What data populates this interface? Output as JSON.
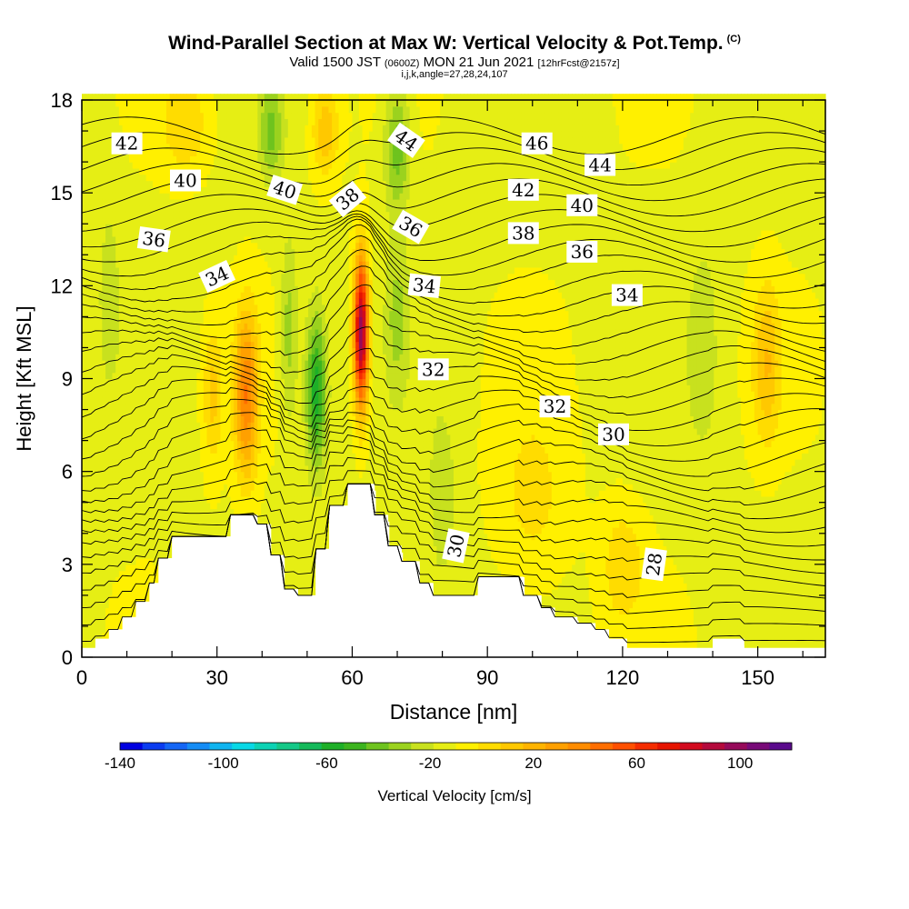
{
  "title": {
    "main": "Wind-Parallel Section at Max W: Vertical Velocity & Pot.Temp.",
    "copyright": "(C)",
    "valid_prefix": "Valid 1500 JST",
    "valid_utc": "(0600Z)",
    "valid_date": "MON 21 Jun 2021",
    "forecast": "[12hrFcst@2157z]",
    "subtitle": "i,j,k,angle=27,28,24,107"
  },
  "colors": {
    "background": "#ffffff",
    "scale": [
      "#0000e0",
      "#0b3cf0",
      "#1466f5",
      "#148cf5",
      "#0fb4f0",
      "#08d8e6",
      "#0cd2b4",
      "#14c887",
      "#14b95a",
      "#1eaf28",
      "#3cb41e",
      "#6ec31e",
      "#9bd21e",
      "#c8e11e",
      "#e6ee14",
      "#fff000",
      "#ffdc00",
      "#ffc800",
      "#ffb400",
      "#ffa000",
      "#ff8c00",
      "#ff6e00",
      "#ff5000",
      "#f52d00",
      "#e61400",
      "#d20a1e",
      "#b40a3c",
      "#960a5a",
      "#780a78",
      "#5a0a8c"
    ]
  },
  "chart_data": {
    "type": "heatmap",
    "xlabel": "Distance [nm]",
    "ylabel": "Height [Kft MSL]",
    "xlim": [
      0,
      165
    ],
    "ylim": [
      0,
      18
    ],
    "x_ticks": [
      0,
      30,
      60,
      90,
      120,
      150
    ],
    "y_ticks": [
      0,
      3,
      6,
      9,
      12,
      15,
      18
    ],
    "grid": false,
    "colorbar": {
      "label": "Vertical Velocity [cm/s]",
      "range": [
        -140,
        120
      ],
      "step": 10,
      "tick_labels": [
        -140,
        -100,
        -60,
        -20,
        20,
        60,
        100
      ],
      "placement": "bottom"
    },
    "filled_field": "vertical velocity (cm/s)",
    "contour_field": "potential temperature",
    "contour_labels": [
      {
        "text": "42",
        "x": 10,
        "y": 16.6,
        "rot": 0
      },
      {
        "text": "40",
        "x": 23,
        "y": 15.4,
        "rot": 0
      },
      {
        "text": "40",
        "x": 45,
        "y": 15.1,
        "rot": 18
      },
      {
        "text": "44",
        "x": 72,
        "y": 16.7,
        "rot": 35
      },
      {
        "text": "38",
        "x": 59,
        "y": 14.8,
        "rot": -40
      },
      {
        "text": "36",
        "x": 16,
        "y": 13.5,
        "rot": 8
      },
      {
        "text": "34",
        "x": 30,
        "y": 12.3,
        "rot": -25
      },
      {
        "text": "36",
        "x": 73,
        "y": 13.9,
        "rot": 30
      },
      {
        "text": "34",
        "x": 76,
        "y": 12.0,
        "rot": 6
      },
      {
        "text": "46",
        "x": 101,
        "y": 16.6,
        "rot": 0
      },
      {
        "text": "44",
        "x": 115,
        "y": 15.9,
        "rot": 0
      },
      {
        "text": "42",
        "x": 98,
        "y": 15.1,
        "rot": 0
      },
      {
        "text": "40",
        "x": 111,
        "y": 14.6,
        "rot": 0
      },
      {
        "text": "38",
        "x": 98,
        "y": 13.7,
        "rot": 0
      },
      {
        "text": "36",
        "x": 111,
        "y": 13.1,
        "rot": 0
      },
      {
        "text": "34",
        "x": 121,
        "y": 11.7,
        "rot": 0
      },
      {
        "text": "32",
        "x": 78,
        "y": 9.3,
        "rot": 0
      },
      {
        "text": "32",
        "x": 105,
        "y": 8.1,
        "rot": 0
      },
      {
        "text": "30",
        "x": 118,
        "y": 7.2,
        "rot": 0
      },
      {
        "text": "30",
        "x": 83,
        "y": 3.6,
        "rot": -78
      },
      {
        "text": "28",
        "x": 127,
        "y": 3.0,
        "rot": -82
      }
    ],
    "terrain": [
      [
        0,
        0.3
      ],
      [
        3,
        0.3
      ],
      [
        3,
        0.6
      ],
      [
        6,
        0.6
      ],
      [
        6,
        0.9
      ],
      [
        9,
        0.9
      ],
      [
        9,
        1.3
      ],
      [
        12,
        1.3
      ],
      [
        12,
        1.8
      ],
      [
        15,
        1.8
      ],
      [
        15,
        2.4
      ],
      [
        17,
        2.4
      ],
      [
        17,
        3.2
      ],
      [
        20,
        3.2
      ],
      [
        20,
        3.9
      ],
      [
        33,
        3.9
      ],
      [
        33,
        4.6
      ],
      [
        39,
        4.6
      ],
      [
        39,
        4.3
      ],
      [
        42,
        4.3
      ],
      [
        42,
        3.3
      ],
      [
        45,
        3.3
      ],
      [
        45,
        2.2
      ],
      [
        48,
        2.2
      ],
      [
        48,
        2.0
      ],
      [
        52,
        2.0
      ],
      [
        52,
        3.5
      ],
      [
        55,
        3.5
      ],
      [
        55,
        4.9
      ],
      [
        59,
        4.9
      ],
      [
        59,
        5.6
      ],
      [
        65,
        5.6
      ],
      [
        65,
        4.6
      ],
      [
        68,
        4.6
      ],
      [
        68,
        3.6
      ],
      [
        71,
        3.6
      ],
      [
        71,
        3.1
      ],
      [
        75,
        3.1
      ],
      [
        75,
        2.4
      ],
      [
        78,
        2.4
      ],
      [
        78,
        2.0
      ],
      [
        88,
        2.0
      ],
      [
        88,
        2.6
      ],
      [
        98,
        2.6
      ],
      [
        98,
        2.0
      ],
      [
        102,
        2.0
      ],
      [
        102,
        1.6
      ],
      [
        105,
        1.6
      ],
      [
        105,
        1.3
      ],
      [
        110,
        1.3
      ],
      [
        110,
        1.1
      ],
      [
        114,
        1.1
      ],
      [
        114,
        0.9
      ],
      [
        117,
        0.9
      ],
      [
        117,
        0.6
      ],
      [
        121,
        0.6
      ],
      [
        121,
        0.3
      ],
      [
        140,
        0.3
      ],
      [
        140,
        0.6
      ],
      [
        147,
        0.6
      ],
      [
        147,
        0.3
      ],
      [
        165,
        0.3
      ]
    ],
    "w_features": [
      {
        "x": 62,
        "y": 10.5,
        "sx": 1.6,
        "sy": 2.4,
        "amp": 130
      },
      {
        "x": 36.5,
        "y": 8.5,
        "sx": 2.6,
        "sy": 2.6,
        "amp": 60
      },
      {
        "x": 29,
        "y": 8.5,
        "sx": 2.2,
        "sy": 2.3,
        "amp": 25
      },
      {
        "x": 52,
        "y": 8.6,
        "sx": 2.3,
        "sy": 2.5,
        "amp": -55
      },
      {
        "x": 46,
        "y": 10.5,
        "sx": 2.0,
        "sy": 3.0,
        "amp": -25
      },
      {
        "x": 42,
        "y": 17.0,
        "sx": 2.5,
        "sy": 1.5,
        "amp": -30
      },
      {
        "x": 54,
        "y": 17.0,
        "sx": 3.0,
        "sy": 1.5,
        "amp": 30
      },
      {
        "x": 70,
        "y": 16.5,
        "sx": 2.8,
        "sy": 2.0,
        "amp": -35
      },
      {
        "x": 70,
        "y": 11.0,
        "sx": 2.5,
        "sy": 2.5,
        "amp": -20
      },
      {
        "x": 80,
        "y": 5.0,
        "sx": 3.0,
        "sy": 3.0,
        "amp": -15
      },
      {
        "x": 100,
        "y": 5.0,
        "sx": 8.0,
        "sy": 3.0,
        "amp": 15
      },
      {
        "x": 152,
        "y": 9.5,
        "sx": 3.0,
        "sy": 2.5,
        "amp": 30
      },
      {
        "x": 138,
        "y": 10.0,
        "sx": 4.0,
        "sy": 4.0,
        "amp": -12
      },
      {
        "x": 6,
        "y": 12.0,
        "sx": 3.0,
        "sy": 4.0,
        "amp": -10
      },
      {
        "x": 23,
        "y": 17.2,
        "sx": 5.0,
        "sy": 1.5,
        "amp": 20
      },
      {
        "x": 120,
        "y": 3.0,
        "sx": 5.0,
        "sy": 2.0,
        "amp": 18
      }
    ]
  }
}
